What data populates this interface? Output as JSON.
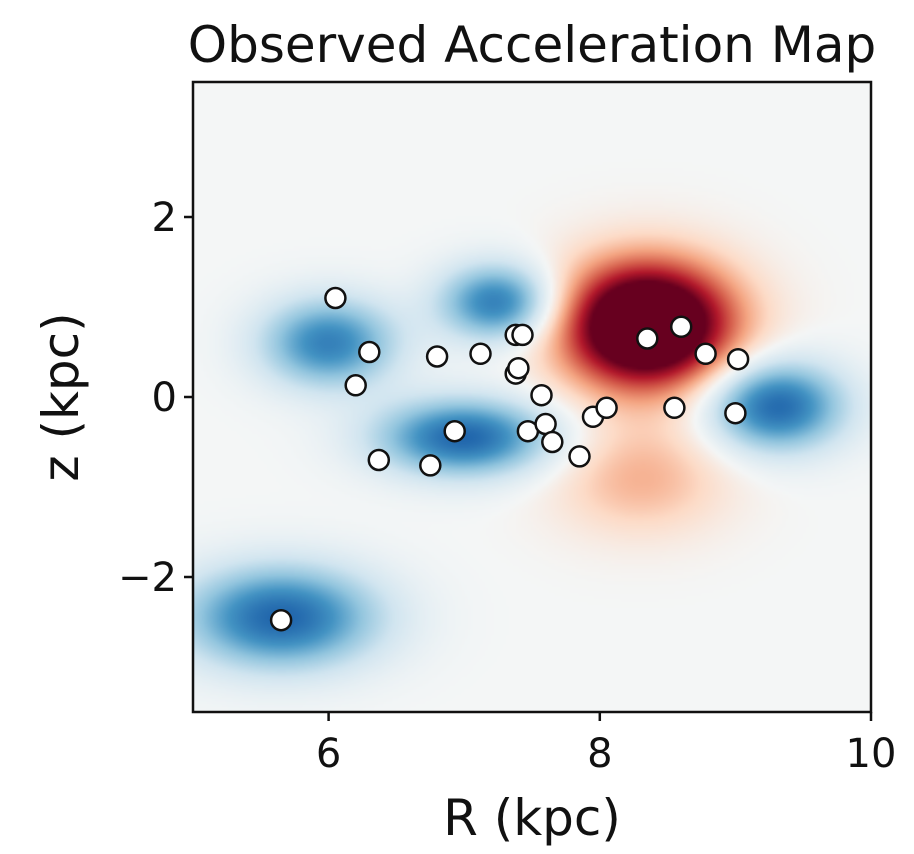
{
  "chart_data": {
    "type": "heatmap",
    "title": "Observed Acceleration Map",
    "xlabel": "R (kpc)",
    "ylabel": "z (kpc)",
    "xlim": [
      5,
      10
    ],
    "ylim": [
      -3.5,
      3.5
    ],
    "xticks": [
      6,
      8,
      10
    ],
    "yticks": [
      2,
      0,
      -2
    ],
    "xtick_labels": [
      "6",
      "8",
      "10"
    ],
    "ytick_labels": [
      "2",
      "0",
      "−2"
    ],
    "grid": false,
    "colormap": "RdBu_r",
    "colors": {
      "negative": "#2166ac",
      "neutral": "#f4f6f6",
      "positive": "#67001f",
      "marker_fill": "#ffffff",
      "marker_edge": "#111111"
    },
    "field_components": [
      {
        "sign": "positive",
        "R": 8.35,
        "z": 0.8,
        "sigma_R": 0.45,
        "sigma_z": 0.5,
        "amp": 1.6
      },
      {
        "sign": "positive",
        "R": 8.3,
        "z": -0.9,
        "sigma_R": 0.45,
        "sigma_z": 0.45,
        "amp": 0.35
      },
      {
        "sign": "negative",
        "R": 7.25,
        "z": 1.05,
        "sigma_R": 0.3,
        "sigma_z": 0.3,
        "amp": 0.9
      },
      {
        "sign": "negative",
        "R": 6.0,
        "z": 0.6,
        "sigma_R": 0.35,
        "sigma_z": 0.35,
        "amp": 0.85
      },
      {
        "sign": "negative",
        "R": 7.0,
        "z": -0.45,
        "sigma_R": 0.45,
        "sigma_z": 0.3,
        "amp": 1.0
      },
      {
        "sign": "negative",
        "R": 5.65,
        "z": -2.45,
        "sigma_R": 0.5,
        "sigma_z": 0.4,
        "amp": 1.0
      },
      {
        "sign": "negative",
        "R": 9.3,
        "z": -0.1,
        "sigma_R": 0.35,
        "sigma_z": 0.35,
        "amp": 1.0
      }
    ],
    "stars": [
      {
        "R": 6.05,
        "z": 1.1
      },
      {
        "R": 6.3,
        "z": 0.5
      },
      {
        "R": 6.2,
        "z": 0.13
      },
      {
        "R": 6.37,
        "z": -0.7
      },
      {
        "R": 6.8,
        "z": 0.45
      },
      {
        "R": 6.75,
        "z": -0.76
      },
      {
        "R": 6.93,
        "z": -0.38
      },
      {
        "R": 7.12,
        "z": 0.48
      },
      {
        "R": 7.38,
        "z": 0.69
      },
      {
        "R": 7.43,
        "z": 0.69
      },
      {
        "R": 7.38,
        "z": 0.26
      },
      {
        "R": 7.4,
        "z": 0.32
      },
      {
        "R": 7.57,
        "z": 0.02
      },
      {
        "R": 7.47,
        "z": -0.38
      },
      {
        "R": 7.6,
        "z": -0.3
      },
      {
        "R": 7.65,
        "z": -0.5
      },
      {
        "R": 7.85,
        "z": -0.66
      },
      {
        "R": 7.95,
        "z": -0.22
      },
      {
        "R": 8.05,
        "z": -0.12
      },
      {
        "R": 8.35,
        "z": 0.65
      },
      {
        "R": 8.6,
        "z": 0.78
      },
      {
        "R": 8.78,
        "z": 0.48
      },
      {
        "R": 8.55,
        "z": -0.12
      },
      {
        "R": 9.02,
        "z": 0.42
      },
      {
        "R": 9.0,
        "z": -0.18
      },
      {
        "R": 5.65,
        "z": -2.48
      }
    ]
  }
}
